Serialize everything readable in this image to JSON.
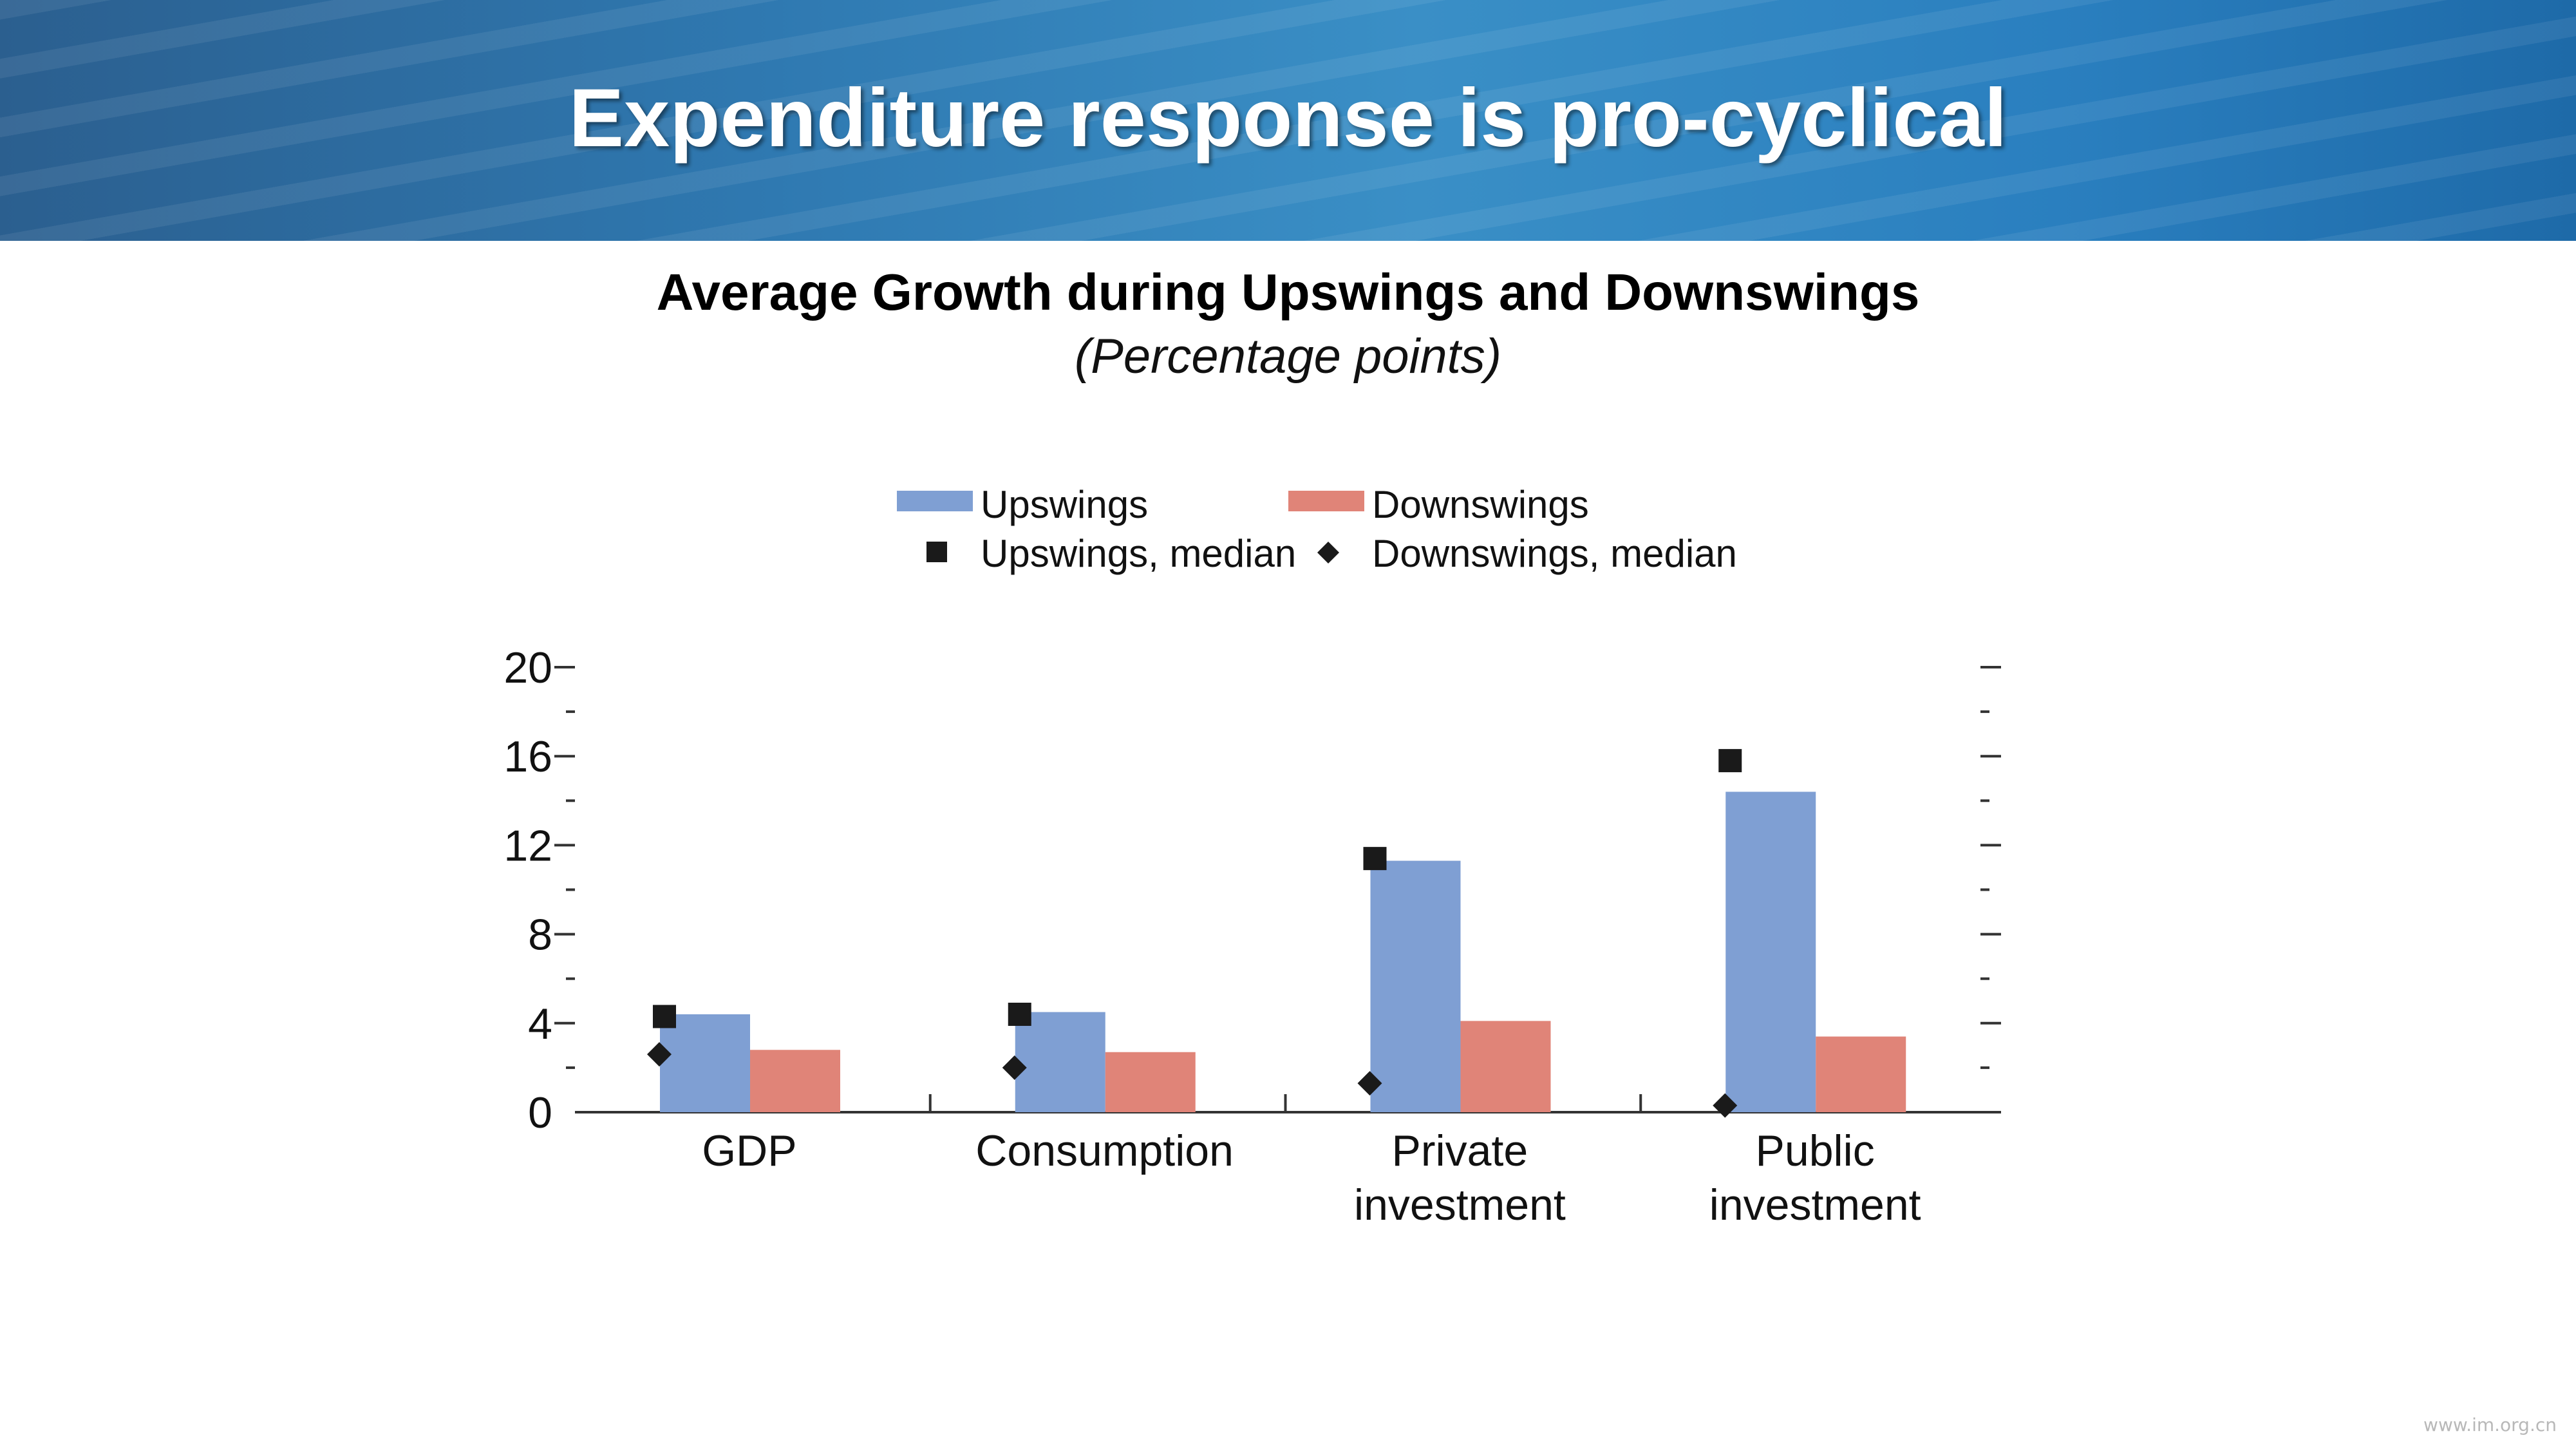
{
  "slide": {
    "title": "Expenditure response is pro-cyclical"
  },
  "watermark": {
    "line1": "",
    "line2": "www.im.org.cn"
  },
  "chart_data": {
    "type": "bar",
    "title": "Average Growth during Upswings and Downswings",
    "subtitle": "(Percentage points)",
    "categories": [
      [
        "GDP"
      ],
      [
        "Consumption"
      ],
      [
        "Private",
        "investment"
      ],
      [
        "Public",
        "investment"
      ]
    ],
    "ylim": [
      0,
      20
    ],
    "yticks": [
      0,
      4,
      8,
      12,
      16,
      20
    ],
    "y_minor_step": 2,
    "grid": false,
    "legend_position": "top",
    "legend": [
      {
        "label": "Upswings",
        "kind": "bar",
        "color": "#7f9fd3"
      },
      {
        "label": "Downswings",
        "kind": "bar",
        "color": "#e08478"
      },
      {
        "label": "Upswings, median",
        "kind": "square",
        "color": "#1a1a1a"
      },
      {
        "label": "Downswings, median",
        "kind": "diamond",
        "color": "#1a1a1a"
      }
    ],
    "series": [
      {
        "name": "Upswings",
        "kind": "bar",
        "color": "#7f9fd3",
        "values": [
          4.4,
          4.5,
          11.3,
          14.4
        ]
      },
      {
        "name": "Downswings",
        "kind": "bar",
        "color": "#e08478",
        "values": [
          2.8,
          2.7,
          4.1,
          3.4
        ]
      },
      {
        "name": "Upswings, median",
        "kind": "square",
        "color": "#1a1a1a",
        "values": [
          4.3,
          4.4,
          11.4,
          15.8
        ]
      },
      {
        "name": "Downswings, median",
        "kind": "diamond",
        "color": "#1a1a1a",
        "values": [
          2.6,
          2.0,
          1.3,
          0.3
        ]
      }
    ]
  }
}
